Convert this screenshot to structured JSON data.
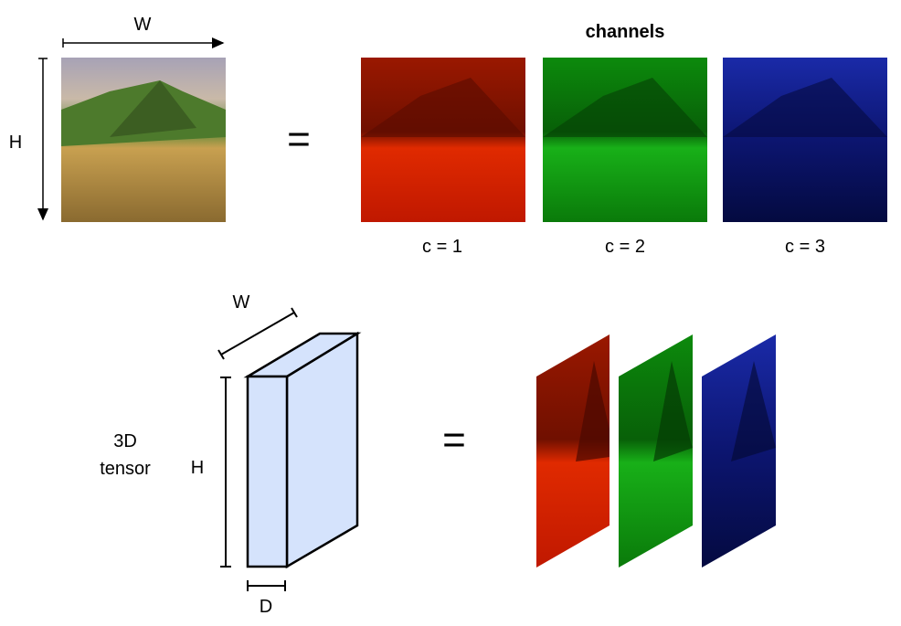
{
  "top": {
    "width_label": "W",
    "height_label": "H",
    "equals": "=",
    "channels_title": "channels",
    "channel_labels": [
      "c = 1",
      "c = 2",
      "c = 3"
    ]
  },
  "bottom": {
    "tensor_label_line1": "3D",
    "tensor_label_line2": "tensor",
    "width_label": "W",
    "height_label": "H",
    "depth_label": "D",
    "equals": "="
  },
  "colors": {
    "tensor_fill": "#d5e3fc",
    "red_channel": "#e02000",
    "green_channel": "#10a010",
    "blue_channel": "#101a80"
  }
}
